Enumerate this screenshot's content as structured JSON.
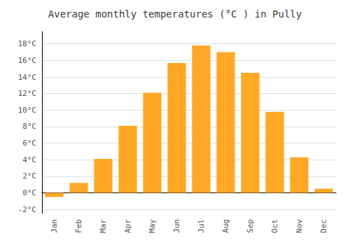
{
  "chart_data": {
    "type": "bar",
    "title": "Average monthly temperatures (°C ) in Pully",
    "categories": [
      "Jan",
      "Feb",
      "Mar",
      "Apr",
      "May",
      "Jun",
      "Jul",
      "Aug",
      "Sep",
      "Oct",
      "Nov",
      "Dec"
    ],
    "values": [
      -0.5,
      1.2,
      4.1,
      8.1,
      12.1,
      15.7,
      17.8,
      17.0,
      14.5,
      9.8,
      4.3,
      0.5
    ],
    "color": "#FFA726",
    "ylim": [
      -2.5,
      19.5
    ],
    "yticks": [
      {
        "value": -2,
        "label": "-2°C"
      },
      {
        "value": 0,
        "label": "0°C"
      },
      {
        "value": 2,
        "label": "2°C"
      },
      {
        "value": 4,
        "label": "4°C"
      },
      {
        "value": 6,
        "label": "6°C"
      },
      {
        "value": 8,
        "label": "8°C"
      },
      {
        "value": 10,
        "label": "10°C"
      },
      {
        "value": 12,
        "label": "12°C"
      },
      {
        "value": 14,
        "label": "14°C"
      },
      {
        "value": 16,
        "label": "16°C"
      },
      {
        "value": 18,
        "label": "18°C"
      }
    ],
    "grid": true
  }
}
